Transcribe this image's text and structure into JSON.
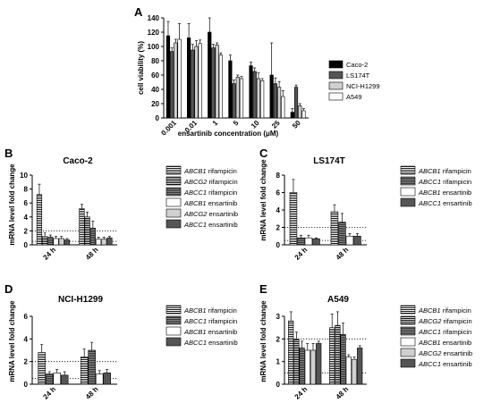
{
  "colors": {
    "black": "#000000",
    "dark": "#555555",
    "light": "#d0d0d0",
    "white": "#ffffff"
  },
  "chart_data": [
    {
      "panel": "A",
      "type": "bar",
      "title": "",
      "xlabel": "ensartinib concentration (μM)",
      "ylabel": "cell viability (%)",
      "ylim": [
        0,
        140
      ],
      "yticks": [
        0,
        20,
        40,
        60,
        80,
        100,
        120,
        140
      ],
      "categories": [
        "0.001",
        "0.01",
        "1",
        "5",
        "10",
        "25",
        "50"
      ],
      "series": [
        {
          "name": "Caco-2",
          "fill": "black",
          "values": [
            115,
            112,
            120,
            80,
            73,
            60,
            8
          ],
          "errors": [
            20,
            20,
            20,
            8,
            5,
            45,
            5
          ]
        },
        {
          "name": "LS174T",
          "fill": "dark",
          "values": [
            93,
            95,
            98,
            48,
            65,
            48,
            43
          ],
          "errors": [
            5,
            8,
            5,
            5,
            5,
            8,
            3
          ]
        },
        {
          "name": "NCI-H1299",
          "fill": "light",
          "values": [
            105,
            100,
            102,
            57,
            55,
            43,
            17
          ],
          "errors": [
            5,
            8,
            3,
            3,
            8,
            8,
            3
          ]
        },
        {
          "name": "A549",
          "fill": "white",
          "values": [
            110,
            104,
            88,
            55,
            52,
            30,
            10
          ],
          "errors": [
            22,
            5,
            3,
            3,
            3,
            8,
            3
          ]
        }
      ],
      "legend": "right"
    },
    {
      "panel": "B",
      "type": "bar",
      "title": "Caco-2",
      "ylabel": "mRNA level fold change",
      "ylim": [
        0,
        10
      ],
      "yticks": [
        0,
        2,
        4,
        6,
        8,
        10
      ],
      "categories": [
        "24 h",
        "48 h"
      ],
      "threshold_lines": [
        2,
        0.5
      ],
      "series": [
        {
          "gene": "ABCB1",
          "drug": "rifampicin",
          "fill": "hstripe",
          "values": [
            7.2,
            5.2
          ],
          "errors": [
            1.5,
            0.6
          ]
        },
        {
          "gene": "ABCG2",
          "drug": "rifampicin",
          "fill": "hstripe-gray",
          "values": [
            1.2,
            4.0
          ],
          "errors": [
            0.5,
            0.7
          ]
        },
        {
          "gene": "ABCC1",
          "drug": "rifampicin",
          "fill": "dark-stripe",
          "values": [
            1.1,
            2.4
          ],
          "errors": [
            0.3,
            1.0
          ]
        },
        {
          "gene": "ABCB1",
          "drug": "ensartinib",
          "fill": "white",
          "values": [
            0.9,
            0.8
          ],
          "errors": [
            0.3,
            0.3
          ]
        },
        {
          "gene": "ABCG2",
          "drug": "ensartinib",
          "fill": "light",
          "values": [
            0.9,
            0.8
          ],
          "errors": [
            0.3,
            0.3
          ]
        },
        {
          "gene": "ABCC1",
          "drug": "ensartinib",
          "fill": "dark",
          "values": [
            0.7,
            1.0
          ],
          "errors": [
            0.2,
            0.2
          ]
        }
      ],
      "legend": "right"
    },
    {
      "panel": "C",
      "type": "bar",
      "title": "LS174T",
      "ylabel": "mRNA level fold change",
      "ylim": [
        0,
        8
      ],
      "yticks": [
        0,
        2,
        4,
        6,
        8
      ],
      "categories": [
        "24 h",
        "48 h"
      ],
      "threshold_lines": [
        2,
        0.5
      ],
      "series": [
        {
          "gene": "ABCB1",
          "drug": "rifampicin",
          "fill": "hstripe",
          "values": [
            6.0,
            3.8
          ],
          "errors": [
            1.5,
            0.8
          ]
        },
        {
          "gene": "ABCC1",
          "drug": "rifampicin",
          "fill": "dark-stripe",
          "values": [
            0.8,
            2.6
          ],
          "errors": [
            0.3,
            1.0
          ]
        },
        {
          "gene": "ABCB1",
          "drug": "ensartinib",
          "fill": "white",
          "values": [
            0.8,
            1.0
          ],
          "errors": [
            0.3,
            0.3
          ]
        },
        {
          "gene": "ABCC1",
          "drug": "ensartinib",
          "fill": "dark",
          "values": [
            0.7,
            1.0
          ],
          "errors": [
            0.1,
            0.3
          ]
        }
      ],
      "legend": "right"
    },
    {
      "panel": "D",
      "type": "bar",
      "title": "NCI-H1299",
      "ylabel": "mRNA level fold change",
      "ylim": [
        0,
        6
      ],
      "yticks": [
        0,
        2,
        4,
        6
      ],
      "categories": [
        "24 h",
        "48 h"
      ],
      "threshold_lines": [
        2,
        0.5
      ],
      "series": [
        {
          "gene": "ABCB1",
          "drug": "rifampicin",
          "fill": "hstripe",
          "values": [
            2.8,
            2.4
          ],
          "errors": [
            0.7,
            0.7
          ]
        },
        {
          "gene": "ABCC1",
          "drug": "rifampicin",
          "fill": "dark-stripe",
          "values": [
            0.9,
            3.0
          ],
          "errors": [
            0.2,
            0.7
          ]
        },
        {
          "gene": "ABCB1",
          "drug": "ensartinib",
          "fill": "white",
          "values": [
            1.0,
            0.9
          ],
          "errors": [
            0.3,
            0.3
          ]
        },
        {
          "gene": "ABCC1",
          "drug": "ensartinib",
          "fill": "dark",
          "values": [
            0.8,
            1.0
          ],
          "errors": [
            0.3,
            0.3
          ]
        }
      ],
      "legend": "right"
    },
    {
      "panel": "E",
      "type": "bar",
      "title": "A549",
      "ylabel": "mRNA level fold change",
      "ylim": [
        0,
        3
      ],
      "yticks": [
        0,
        1,
        2,
        3
      ],
      "categories": [
        "24 h",
        "48 h"
      ],
      "threshold_lines": [
        2,
        0.5
      ],
      "series": [
        {
          "gene": "ABCB1",
          "drug": "rifampicin",
          "fill": "hstripe",
          "values": [
            2.8,
            2.5
          ],
          "errors": [
            0.4,
            0.6
          ]
        },
        {
          "gene": "ABCG2",
          "drug": "rifampicin",
          "fill": "hstripe-gray",
          "values": [
            2.0,
            2.6
          ],
          "errors": [
            0.3,
            0.6
          ]
        },
        {
          "gene": "ABCC1",
          "drug": "rifampicin",
          "fill": "dark-stripe",
          "values": [
            1.6,
            2.2
          ],
          "errors": [
            0.3,
            0.5
          ]
        },
        {
          "gene": "ABCB1",
          "drug": "ensartinib",
          "fill": "white",
          "values": [
            1.5,
            1.2
          ],
          "errors": [
            0.3,
            0.1
          ]
        },
        {
          "gene": "ABCG2",
          "drug": "ensartinib",
          "fill": "light",
          "values": [
            1.5,
            1.1
          ],
          "errors": [
            0.3,
            0.1
          ]
        },
        {
          "gene": "ABCC1",
          "drug": "ensartinib",
          "fill": "dark",
          "values": [
            1.8,
            1.6
          ],
          "errors": [
            0.1,
            0.1
          ]
        }
      ],
      "legend": "right"
    }
  ]
}
